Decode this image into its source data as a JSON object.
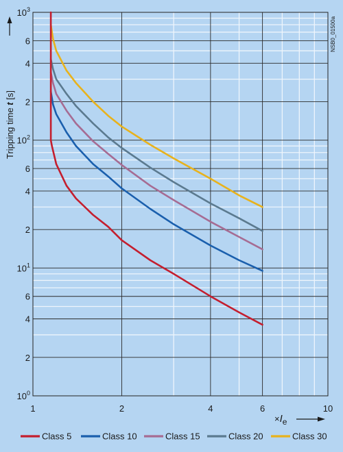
{
  "chart_data": {
    "type": "line",
    "y_axis_label_main": "Tripping time ",
    "y_axis_label_symbol": "t",
    "y_axis_label_unit": " [s]",
    "x_axis_label_times": "×",
    "x_axis_label_symbol": "I",
    "x_axis_label_subscript": "e",
    "doc_id": "NSB0_01500a",
    "x_scale": "log",
    "y_scale": "log",
    "xlim": [
      1,
      10
    ],
    "ylim": [
      1,
      1000
    ],
    "grid": true,
    "legend_position": "bottom",
    "x_ticks": [
      {
        "value": 1,
        "label": "1"
      },
      {
        "value": 2,
        "label": "2"
      },
      {
        "value": 4,
        "label": "4"
      },
      {
        "value": 6,
        "label": "6"
      },
      {
        "value": 10,
        "label": "10"
      }
    ],
    "y_ticks": [
      {
        "value": 1,
        "mantissa": "10",
        "exp": "0"
      },
      {
        "value": 2,
        "mantissa": "2",
        "exp": ""
      },
      {
        "value": 4,
        "mantissa": "4",
        "exp": ""
      },
      {
        "value": 6,
        "mantissa": "6",
        "exp": ""
      },
      {
        "value": 10,
        "mantissa": "10",
        "exp": "1"
      },
      {
        "value": 20,
        "mantissa": "2",
        "exp": ""
      },
      {
        "value": 40,
        "mantissa": "4",
        "exp": ""
      },
      {
        "value": 60,
        "mantissa": "6",
        "exp": ""
      },
      {
        "value": 100,
        "mantissa": "10",
        "exp": "2"
      },
      {
        "value": 200,
        "mantissa": "2",
        "exp": ""
      },
      {
        "value": 400,
        "mantissa": "4",
        "exp": ""
      },
      {
        "value": 600,
        "mantissa": "6",
        "exp": ""
      },
      {
        "value": 1000,
        "mantissa": "10",
        "exp": "3"
      }
    ],
    "series": [
      {
        "name": "Class 5",
        "color": "#c41e2e",
        "x": [
          1.15,
          1.15,
          1.15,
          1.16,
          1.2,
          1.3,
          1.4,
          1.6,
          1.8,
          2.0,
          2.5,
          3.0,
          4.0,
          5.0,
          6.0
        ],
        "y": [
          1000,
          300,
          100,
          90,
          65,
          44,
          35,
          26,
          21,
          16.5,
          11.5,
          9.0,
          6.0,
          4.5,
          3.6
        ]
      },
      {
        "name": "Class 10",
        "color": "#1a5fad",
        "x": [
          1.15,
          1.17,
          1.2,
          1.3,
          1.4,
          1.6,
          1.8,
          2.0,
          2.5,
          3.0,
          4.0,
          5.0,
          6.0
        ],
        "y": [
          240,
          190,
          160,
          115,
          90,
          65,
          52,
          42,
          29,
          22,
          15,
          11.5,
          9.5
        ]
      },
      {
        "name": "Class 15",
        "color": "#a66c93",
        "x": [
          1.15,
          1.17,
          1.2,
          1.3,
          1.4,
          1.6,
          1.8,
          2.0,
          2.5,
          3.0,
          4.0,
          5.0,
          6.0
        ],
        "y": [
          340,
          280,
          230,
          170,
          135,
          98,
          78,
          64,
          44,
          34,
          23,
          17.5,
          14
        ]
      },
      {
        "name": "Class 20",
        "color": "#5b7a8f",
        "x": [
          1.15,
          1.17,
          1.2,
          1.3,
          1.4,
          1.6,
          1.8,
          2.0,
          2.5,
          3.0,
          4.0,
          5.0,
          6.0
        ],
        "y": [
          430,
          360,
          300,
          230,
          185,
          135,
          105,
          87,
          61,
          47,
          32,
          24.5,
          19.5
        ]
      },
      {
        "name": "Class 30",
        "color": "#e8b21c",
        "x": [
          1.15,
          1.17,
          1.2,
          1.3,
          1.4,
          1.6,
          1.8,
          2.0,
          2.5,
          3.0,
          4.0,
          5.0,
          6.0
        ],
        "y": [
          800,
          620,
          500,
          350,
          280,
          200,
          155,
          128,
          92,
          72,
          50,
          37,
          30
        ]
      }
    ]
  }
}
